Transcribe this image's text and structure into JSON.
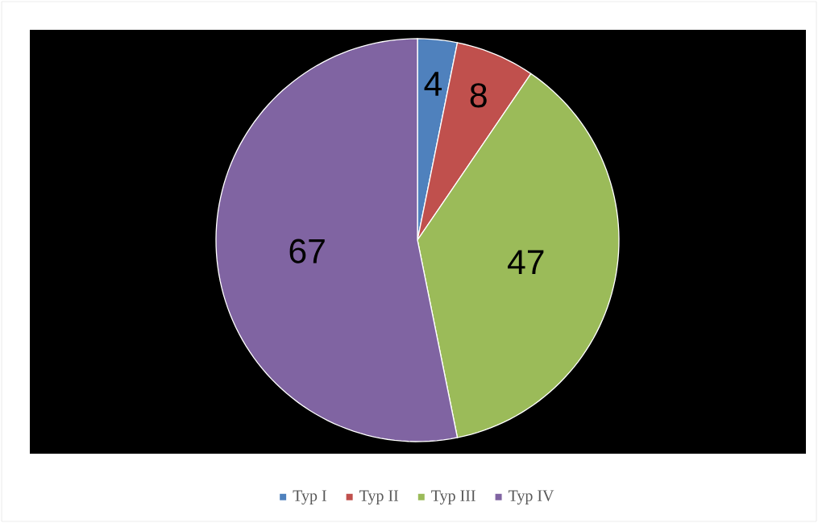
{
  "chart_data": {
    "type": "pie",
    "categories": [
      "Typ I",
      "Typ II",
      "Typ III",
      "Typ IV"
    ],
    "values": [
      4,
      8,
      47,
      67
    ],
    "colors": [
      "#4f81bd",
      "#c0504d",
      "#9bbb59",
      "#8064a2"
    ],
    "data_labels": true,
    "legend": "bottom"
  }
}
